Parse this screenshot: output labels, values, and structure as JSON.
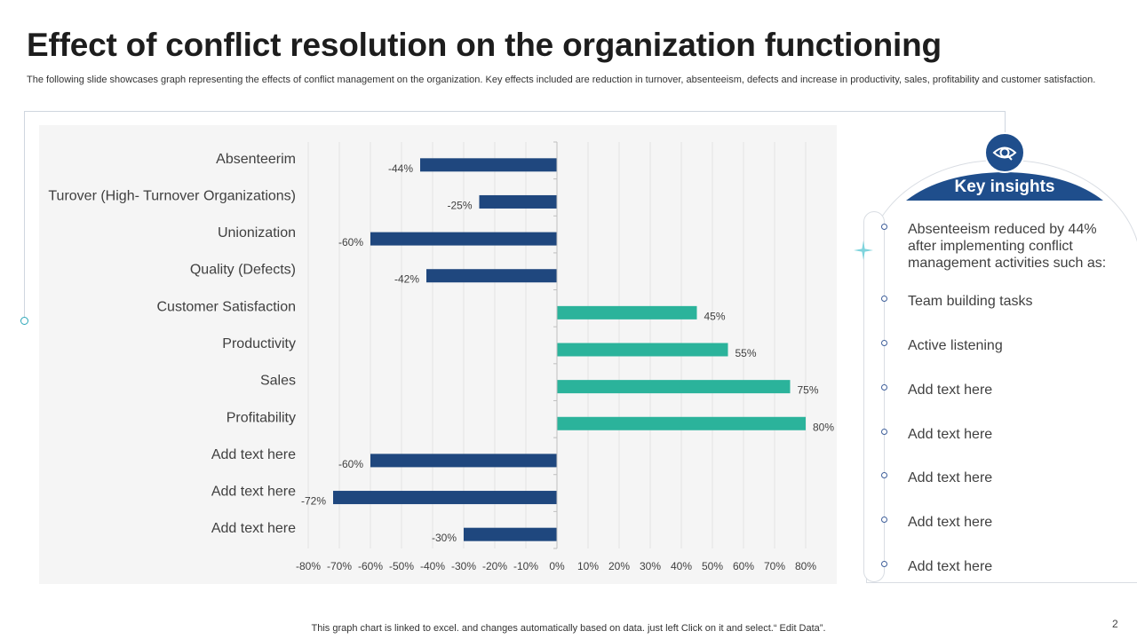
{
  "page": {
    "title": "Effect of conflict resolution on the organization functioning",
    "subtitle": "The following slide showcases graph representing the effects of conflict management on the organization. Key effects included are reduction in turnover,  absenteeism, defects and increase in productivity, sales, profitability and customer satisfaction.",
    "footer": "This graph chart is linked to excel.  and changes automatically based on data. just left Click on it and select.“ Edit Data”.",
    "page_number": "2"
  },
  "colors": {
    "negative_bar": "#1f477e",
    "positive_bar": "#2bb39b",
    "header_bg": "#1f4e8c",
    "grid": "#e4e4e4",
    "panel_bg": "#f5f5f5"
  },
  "chart_data": {
    "type": "bar",
    "orientation": "horizontal",
    "title": "",
    "xlabel": "",
    "ylabel": "",
    "categories": [
      "Absenteerim",
      "Turover (High- Turnover Organizations)",
      "Unionization",
      "Quality (Defects)",
      "Customer Satisfaction",
      "Productivity",
      "Sales",
      "Profitability",
      "Add text here",
      "Add text here",
      "Add text here"
    ],
    "values": [
      -44,
      -25,
      -60,
      -42,
      45,
      55,
      75,
      80,
      -60,
      -72,
      -30
    ],
    "value_labels": [
      "-44%",
      "-25%",
      "-60%",
      "-42%",
      "45%",
      "55%",
      "75%",
      "80%",
      "-60%",
      "-72%",
      "-30%"
    ],
    "xlim": [
      -80,
      80
    ],
    "x_ticks": [
      -80,
      -70,
      -60,
      -50,
      -40,
      -30,
      -20,
      -10,
      0,
      10,
      20,
      30,
      40,
      50,
      60,
      70,
      80
    ],
    "x_tick_labels": [
      "-80%",
      "-70%",
      "-60%",
      "-50%",
      "-40%",
      "-30%",
      "-20%",
      "-10%",
      "0%",
      "10%",
      "20%",
      "30%",
      "40%",
      "50%",
      "60%",
      "70%",
      "80%"
    ],
    "grid": true,
    "legend": "none"
  },
  "insights": {
    "title": "Key insights",
    "icon": "eye-insight-icon",
    "items": [
      "Absenteeism reduced by 44% after implementing  conflict management activities such as:",
      "Team building tasks",
      "Active listening",
      "Add text here",
      "Add text here",
      "Add text here",
      "Add text here",
      "Add text here"
    ]
  }
}
